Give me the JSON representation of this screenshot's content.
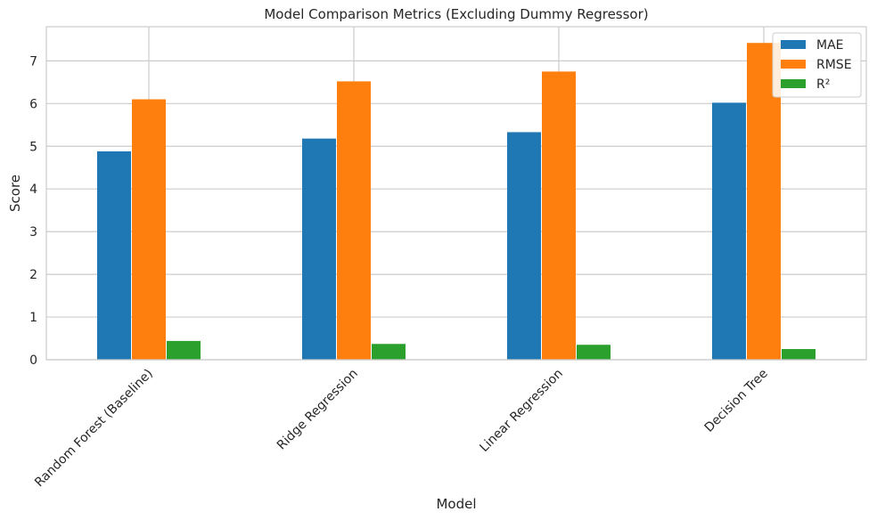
{
  "chart_data": {
    "type": "bar",
    "title": "Model Comparison Metrics (Excluding Dummy Regressor)",
    "xlabel": "Model",
    "ylabel": "Score",
    "ylim": [
      0,
      7.8
    ],
    "yticks": [
      "0",
      "1",
      "2",
      "3",
      "4",
      "5",
      "6",
      "7"
    ],
    "grid": true,
    "legend_position": "top-right",
    "categories": [
      "Random Forest (Baseline)",
      "Ridge Regression",
      "Linear Regression",
      "Decision Tree"
    ],
    "series": [
      {
        "name": "MAE",
        "color": "#1f77b4",
        "values": [
          4.88,
          5.18,
          5.33,
          6.02
        ]
      },
      {
        "name": "RMSE",
        "color": "#ff7f0e",
        "values": [
          6.1,
          6.52,
          6.75,
          7.42
        ]
      },
      {
        "name": "R²",
        "color": "#2ca02c",
        "values": [
          0.44,
          0.37,
          0.35,
          0.25
        ]
      }
    ]
  }
}
